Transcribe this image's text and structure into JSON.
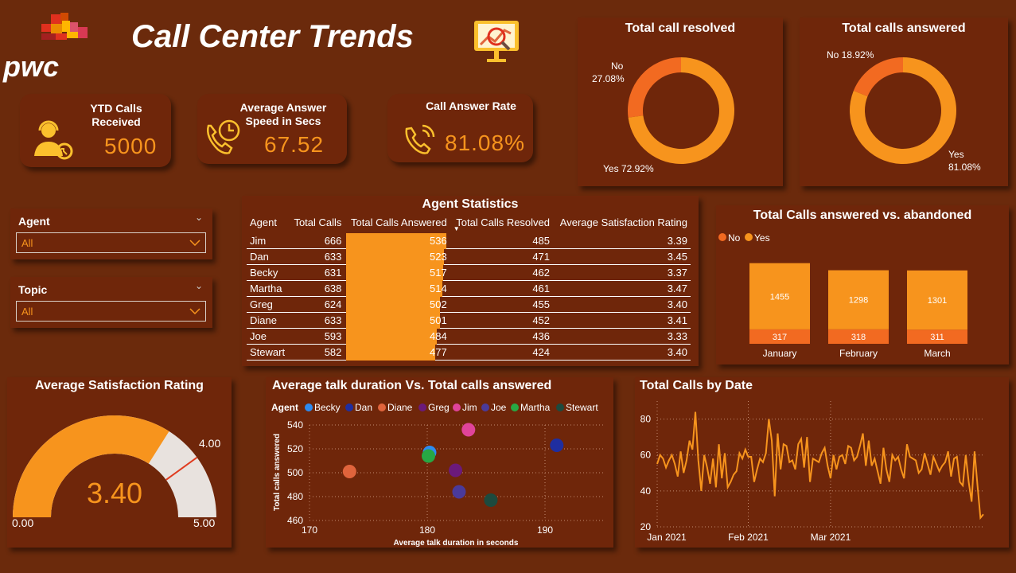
{
  "header": {
    "brand": "pwc",
    "title": "Call Center Trends",
    "presentation_icon": "presentation-chart-icon"
  },
  "kpis": {
    "ytd": {
      "label": "YTD Calls Received",
      "value": "5000",
      "icon": "headset-agent-icon"
    },
    "speed": {
      "label1": "Average Answer",
      "label2": "Speed in Secs",
      "value": "67.52",
      "icon": "phone-clock-icon"
    },
    "rate": {
      "label": "Call Answer Rate",
      "value": "81.08%",
      "icon": "phone-ringing-icon"
    }
  },
  "slicers": {
    "agent": {
      "label": "Agent",
      "value": "All"
    },
    "topic": {
      "label": "Topic",
      "value": "All"
    }
  },
  "colors": {
    "yes": "#f7941d",
    "no": "#f26a21",
    "background": "#6b2a0c",
    "gauge_rest": "#e8e2de",
    "target": "#e03c20"
  },
  "donut_resolved": {
    "title": "Total call resolved",
    "no_label": "No",
    "no_pct": "27.08%",
    "yes_label": "Yes 72.92%",
    "chart_data": {
      "type": "pie",
      "categories": [
        "No",
        "Yes"
      ],
      "values": [
        27.08,
        72.92
      ]
    }
  },
  "donut_answered": {
    "title": "Total calls answered",
    "no_label": "No 18.92%",
    "yes_label": "Yes",
    "yes_pct": "81.08%",
    "chart_data": {
      "type": "pie",
      "categories": [
        "No",
        "Yes"
      ],
      "values": [
        18.92,
        81.08
      ]
    }
  },
  "agent_stats": {
    "title": "Agent Statistics",
    "columns": [
      "Agent",
      "Total Calls",
      "Total Calls Answered",
      "Total Calls Resolved",
      "Average Satisfaction Rating"
    ],
    "sort_indicator": "▼",
    "rows": [
      [
        "Jim",
        "666",
        "536",
        "485",
        "3.39"
      ],
      [
        "Dan",
        "633",
        "523",
        "471",
        "3.45"
      ],
      [
        "Becky",
        "631",
        "517",
        "462",
        "3.37"
      ],
      [
        "Martha",
        "638",
        "514",
        "461",
        "3.47"
      ],
      [
        "Greg",
        "624",
        "502",
        "455",
        "3.40"
      ],
      [
        "Diane",
        "633",
        "501",
        "452",
        "3.41"
      ],
      [
        "Joe",
        "593",
        "484",
        "436",
        "3.33"
      ],
      [
        "Stewart",
        "582",
        "477",
        "424",
        "3.40"
      ]
    ]
  },
  "stacked": {
    "title": "Total Calls answered vs. abandoned",
    "legend": [
      "No",
      "Yes"
    ],
    "chart_data": {
      "type": "bar",
      "categories": [
        "January",
        "February",
        "March"
      ],
      "series": [
        {
          "name": "No",
          "values": [
            317,
            318,
            311
          ]
        },
        {
          "name": "Yes",
          "values": [
            1455,
            1298,
            1301
          ]
        }
      ]
    }
  },
  "gauge": {
    "title": "Average Satisfaction Rating",
    "value_label": "3.40",
    "min_label": "0.00",
    "max_label": "5.00",
    "target_label": "4.00",
    "chart_data": {
      "type": "gauge",
      "value": 3.4,
      "min": 0,
      "max": 5,
      "target": 4.0
    }
  },
  "scatter": {
    "title": "Average talk duration Vs. Total calls answered",
    "legend_title": "Agent",
    "chart_data": {
      "type": "scatter",
      "xlabel": "Average talk duration in seconds",
      "ylabel": "Total calls answered",
      "xlim": [
        170,
        195
      ],
      "ylim": [
        460,
        540
      ],
      "xticks": [
        170,
        180,
        190
      ],
      "yticks": [
        460,
        480,
        500,
        520,
        540
      ],
      "series": [
        {
          "name": "Becky",
          "color": "#2e8bf0",
          "x": 180.2,
          "y": 517
        },
        {
          "name": "Dan",
          "color": "#1f2ea0",
          "x": 191.0,
          "y": 523
        },
        {
          "name": "Diane",
          "color": "#e0643c",
          "x": 173.4,
          "y": 501
        },
        {
          "name": "Greg",
          "color": "#6b1a7a",
          "x": 182.4,
          "y": 502
        },
        {
          "name": "Jim",
          "color": "#e0449a",
          "x": 183.5,
          "y": 536
        },
        {
          "name": "Joe",
          "color": "#4a3a9a",
          "x": 182.7,
          "y": 484
        },
        {
          "name": "Martha",
          "color": "#27a844",
          "x": 180.1,
          "y": 514
        },
        {
          "name": "Stewart",
          "color": "#1d4a3e",
          "x": 185.4,
          "y": 477
        }
      ]
    }
  },
  "line": {
    "title": "Total Calls by Date",
    "chart_data": {
      "type": "line",
      "ylim": [
        20,
        90
      ],
      "yticks": [
        20,
        40,
        60,
        80
      ],
      "xticks": [
        "Jan 2021",
        "Feb 2021",
        "Mar 2021"
      ],
      "values": [
        55,
        60,
        58,
        53,
        57,
        60,
        55,
        48,
        62,
        50,
        57,
        68,
        63,
        84,
        57,
        40,
        60,
        53,
        44,
        58,
        42,
        66,
        47,
        61,
        42,
        45,
        49,
        51,
        61,
        58,
        63,
        59,
        59,
        45,
        52,
        58,
        56,
        61,
        80,
        68,
        37,
        72,
        52,
        66,
        65,
        56,
        57,
        52,
        66,
        69,
        53,
        70,
        45,
        58,
        57,
        56,
        61,
        64,
        54,
        47,
        60,
        52,
        59,
        60,
        55,
        65,
        64,
        57,
        59,
        65,
        72,
        54,
        68,
        54,
        58,
        51,
        44,
        64,
        52,
        45,
        60,
        57,
        59,
        52,
        47,
        66,
        59,
        58,
        57,
        50,
        52,
        61,
        55,
        49,
        59,
        55,
        51,
        54,
        56,
        62,
        48,
        58,
        59,
        45,
        43,
        60,
        45,
        34,
        62,
        43,
        25,
        27
      ]
    }
  }
}
